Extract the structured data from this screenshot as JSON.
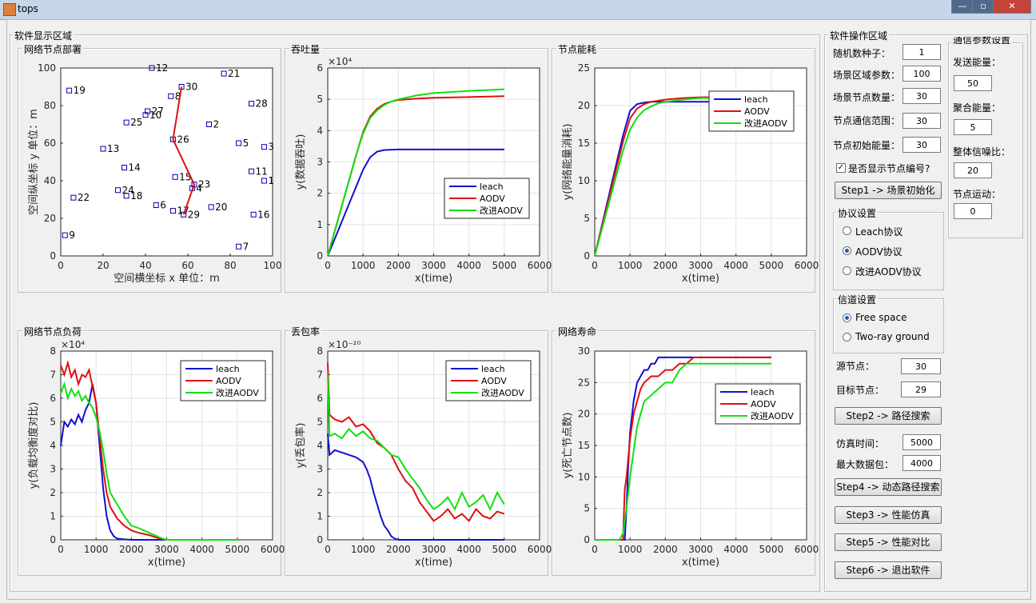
{
  "window": {
    "title": "tops"
  },
  "display_area": {
    "title": "软件显示区域"
  },
  "op_area": {
    "title": "软件操作区域"
  },
  "params": {
    "seed_label": "随机数种子：",
    "seed": "1",
    "area_label": "场景区域参数：",
    "area": "100",
    "nodes_label": "场景节点数量：",
    "nodes": "30",
    "range_label": "节点通信范围：",
    "range": "30",
    "energy_label": "节点初始能量：",
    "energy": "30",
    "show_ids_label": "是否显示节点编号?",
    "show_ids_checked": true
  },
  "comm": {
    "title": "通信参数设置",
    "send_label": "发送能量：",
    "send": "50",
    "agg_label": "聚合能量：",
    "agg": "5",
    "snr_label": "整体信噪比：",
    "snr": "20",
    "move_label": "节点运动：",
    "move": "0"
  },
  "buttons": {
    "step1": "Step1 -> 场景初始化",
    "step2": "Step2 -> 路径搜索",
    "step4": "Step4 -> 动态路径搜索",
    "step3": "Step3 -> 性能仿真",
    "step5": "Step5 -> 性能对比",
    "step6": "Step6 -> 退出软件"
  },
  "protocol": {
    "title": "协议设置",
    "options": [
      "Leach协议",
      "AODV协议",
      "改进AODV协议"
    ],
    "selected": 1
  },
  "channel": {
    "title": "信道设置",
    "options": [
      "Free space",
      "Two-ray ground"
    ],
    "selected": 0
  },
  "route": {
    "src_label": "源节点：",
    "src": "30",
    "dst_label": "目标节点：",
    "dst": "29"
  },
  "sim": {
    "time_label": "仿真时间：",
    "time": "5000",
    "maxpkt_label": "最大数据包：",
    "maxpkt": "4000"
  },
  "colors": {
    "leach": "#1010d0",
    "aodv": "#e01010",
    "improved": "#10e010"
  },
  "chart_data": [
    {
      "panel_title": "网络节点部署",
      "type": "scatter",
      "xlabel": "空间横坐标 x  单位：m",
      "ylabel": "空间纵坐标 y  单位：m",
      "xlim": [
        0,
        100
      ],
      "ylim": [
        0,
        100
      ],
      "xticks": [
        "0",
        "20",
        "40",
        "60",
        "80",
        "100"
      ],
      "yticks": [
        "0",
        "20",
        "40",
        "60",
        "80",
        "100"
      ],
      "points": [
        {
          "id": "1",
          "x": 96,
          "y": 40
        },
        {
          "id": "2",
          "x": 70,
          "y": 70
        },
        {
          "id": "3",
          "x": 96,
          "y": 58
        },
        {
          "id": "4",
          "x": 62,
          "y": 36
        },
        {
          "id": "5",
          "x": 84,
          "y": 60
        },
        {
          "id": "6",
          "x": 45,
          "y": 27
        },
        {
          "id": "7",
          "x": 84,
          "y": 5
        },
        {
          "id": "8",
          "x": 52,
          "y": 85
        },
        {
          "id": "9",
          "x": 2,
          "y": 11
        },
        {
          "id": "10",
          "x": 40,
          "y": 75
        },
        {
          "id": "11",
          "x": 90,
          "y": 45
        },
        {
          "id": "12",
          "x": 43,
          "y": 100
        },
        {
          "id": "13",
          "x": 20,
          "y": 57
        },
        {
          "id": "14",
          "x": 30,
          "y": 47
        },
        {
          "id": "15",
          "x": 54,
          "y": 42
        },
        {
          "id": "16",
          "x": 91,
          "y": 22
        },
        {
          "id": "17",
          "x": 53,
          "y": 24
        },
        {
          "id": "18",
          "x": 31,
          "y": 32
        },
        {
          "id": "19",
          "x": 4,
          "y": 88
        },
        {
          "id": "20",
          "x": 71,
          "y": 26
        },
        {
          "id": "21",
          "x": 77,
          "y": 97
        },
        {
          "id": "22",
          "x": 6,
          "y": 31
        },
        {
          "id": "23",
          "x": 63,
          "y": 38
        },
        {
          "id": "24",
          "x": 27,
          "y": 35
        },
        {
          "id": "25",
          "x": 31,
          "y": 71
        },
        {
          "id": "26",
          "x": 53,
          "y": 62
        },
        {
          "id": "27",
          "x": 41,
          "y": 77
        },
        {
          "id": "28",
          "x": 90,
          "y": 81
        },
        {
          "id": "29",
          "x": 58,
          "y": 22
        },
        {
          "id": "30",
          "x": 57,
          "y": 90
        }
      ],
      "path": [
        30,
        26,
        23,
        29
      ]
    },
    {
      "panel_title": "吞吐量",
      "type": "line",
      "xlabel": "x(time)",
      "ylabel": "y(数据吞吐)",
      "exponent": "×10⁴",
      "xlim": [
        0,
        6000
      ],
      "ylim": [
        0,
        6
      ],
      "xticks": [
        "0",
        "1000",
        "2000",
        "3000",
        "4000",
        "5000",
        "6000"
      ],
      "yticks": [
        "0",
        "1",
        "2",
        "3",
        "4",
        "5",
        "6"
      ],
      "legend": {
        "position": "lower-right",
        "entries": [
          "leach",
          "AODV",
          "改进AODV"
        ]
      },
      "series": [
        {
          "name": "leach",
          "color": "#1010d0",
          "x": [
            0,
            200,
            400,
            600,
            800,
            1000,
            1200,
            1400,
            1600,
            1800,
            2000,
            3000,
            5000
          ],
          "y": [
            0,
            0.55,
            1.1,
            1.65,
            2.2,
            2.75,
            3.15,
            3.33,
            3.38,
            3.39,
            3.4,
            3.4,
            3.4
          ]
        },
        {
          "name": "AODV",
          "color": "#e01010",
          "x": [
            0,
            200,
            400,
            600,
            800,
            1000,
            1200,
            1400,
            1600,
            1800,
            2000,
            2500,
            3000,
            4000,
            5000
          ],
          "y": [
            0,
            0.8,
            1.6,
            2.4,
            3.2,
            3.95,
            4.45,
            4.7,
            4.85,
            4.93,
            4.98,
            5.02,
            5.05,
            5.07,
            5.1
          ]
        },
        {
          "name": "改进AODV",
          "color": "#10e010",
          "x": [
            0,
            200,
            400,
            600,
            800,
            1000,
            1200,
            1400,
            1600,
            1800,
            2000,
            2500,
            3000,
            4000,
            5000
          ],
          "y": [
            0,
            0.8,
            1.6,
            2.4,
            3.2,
            3.9,
            4.4,
            4.65,
            4.82,
            4.93,
            5.0,
            5.12,
            5.2,
            5.27,
            5.32
          ]
        }
      ]
    },
    {
      "panel_title": "节点能耗",
      "type": "line",
      "xlabel": "x(time)",
      "ylabel": "y(网络能量消耗)",
      "xlim": [
        0,
        6000
      ],
      "ylim": [
        0,
        25
      ],
      "xticks": [
        "0",
        "1000",
        "2000",
        "3000",
        "4000",
        "5000",
        "6000"
      ],
      "yticks": [
        "0",
        "5",
        "10",
        "15",
        "20",
        "25"
      ],
      "legend": {
        "position": "top-right",
        "entries": [
          "leach",
          "AODV",
          "改进AODV"
        ]
      },
      "series": [
        {
          "name": "leach",
          "color": "#1010d0",
          "x": [
            0,
            200,
            400,
            600,
            800,
            1000,
            1200,
            1400,
            1600,
            2000,
            3000,
            5000
          ],
          "y": [
            0,
            4,
            8,
            12,
            16,
            19.3,
            20.2,
            20.4,
            20.5,
            20.5,
            20.5,
            20.5
          ]
        },
        {
          "name": "AODV",
          "color": "#e01010",
          "x": [
            0,
            200,
            400,
            600,
            800,
            1000,
            1200,
            1400,
            1600,
            2000,
            2500,
            3000,
            5000
          ],
          "y": [
            0,
            3.8,
            7.6,
            11.4,
            15.2,
            18.3,
            19.6,
            20.2,
            20.5,
            20.8,
            21.0,
            21.1,
            21.2
          ]
        },
        {
          "name": "改进AODV",
          "color": "#10e010",
          "x": [
            0,
            200,
            400,
            600,
            800,
            1000,
            1200,
            1400,
            1600,
            1800,
            2000,
            2500,
            3000,
            5000
          ],
          "y": [
            0,
            3.5,
            7,
            10.5,
            14,
            16.8,
            18.4,
            19.4,
            19.9,
            20.3,
            20.5,
            20.8,
            21.0,
            21.1
          ]
        }
      ]
    },
    {
      "panel_title": "网络节点负荷",
      "type": "line",
      "xlabel": "x(time)",
      "ylabel": "y(负载均衡度对比)",
      "exponent": "×10⁴",
      "xlim": [
        0,
        6000
      ],
      "ylim": [
        0,
        8
      ],
      "xticks": [
        "0",
        "1000",
        "2000",
        "3000",
        "4000",
        "5000",
        "6000"
      ],
      "yticks": [
        "0",
        "1",
        "2",
        "3",
        "4",
        "5",
        "6",
        "7",
        "8"
      ],
      "legend": {
        "position": "top-right",
        "entries": [
          "leach",
          "AODV",
          "改进AODV"
        ]
      },
      "series": [
        {
          "name": "leach",
          "color": "#1010d0",
          "x": [
            0,
            100,
            200,
            300,
            400,
            500,
            600,
            700,
            800,
            900,
            1000,
            1100,
            1200,
            1300,
            1400,
            1500,
            1600,
            1800,
            2000,
            3000,
            5000
          ],
          "y": [
            4.0,
            5.0,
            4.8,
            5.1,
            4.9,
            5.3,
            5.0,
            5.5,
            5.8,
            6.6,
            5.8,
            4.0,
            2.2,
            1.0,
            0.4,
            0.15,
            0.05,
            0.02,
            0,
            0,
            0
          ]
        },
        {
          "name": "AODV",
          "color": "#e01010",
          "x": [
            0,
            100,
            200,
            300,
            400,
            500,
            600,
            700,
            800,
            900,
            1000,
            1100,
            1200,
            1300,
            1400,
            1600,
            1800,
            2000,
            2200,
            2500,
            2800,
            3000,
            5000
          ],
          "y": [
            7.4,
            7.0,
            7.5,
            6.9,
            7.2,
            6.6,
            7.0,
            6.9,
            7.2,
            6.5,
            5.8,
            4.4,
            3.0,
            2.0,
            1.4,
            0.9,
            0.6,
            0.4,
            0.3,
            0.2,
            0.05,
            0,
            0
          ]
        },
        {
          "name": "改进AODV",
          "color": "#10e010",
          "x": [
            0,
            100,
            200,
            300,
            400,
            500,
            600,
            700,
            800,
            900,
            1000,
            1100,
            1200,
            1300,
            1400,
            1600,
            1800,
            2000,
            2200,
            2500,
            2800,
            3000,
            5000
          ],
          "y": [
            6.2,
            6.6,
            6.0,
            6.4,
            6.1,
            6.3,
            5.9,
            6.1,
            5.8,
            5.6,
            5.2,
            4.6,
            3.8,
            2.8,
            2.0,
            1.5,
            1.0,
            0.6,
            0.5,
            0.3,
            0.1,
            0,
            0
          ]
        }
      ]
    },
    {
      "panel_title": "丢包率",
      "type": "line",
      "xlabel": "x(time)",
      "ylabel": "y(丢包率)",
      "exponent": "×10⁻²⁰",
      "xlim": [
        0,
        6000
      ],
      "ylim": [
        0,
        8
      ],
      "xticks": [
        "0",
        "1000",
        "2000",
        "3000",
        "4000",
        "5000",
        "6000"
      ],
      "yticks": [
        "0",
        "1",
        "2",
        "3",
        "4",
        "5",
        "6",
        "7",
        "8"
      ],
      "legend": {
        "position": "top-right",
        "entries": [
          "leach",
          "AODV",
          "改进AODV"
        ]
      },
      "series": [
        {
          "name": "leach",
          "color": "#1010d0",
          "x": [
            0,
            50,
            200,
            400,
            600,
            800,
            1000,
            1100,
            1200,
            1300,
            1400,
            1500,
            1600,
            1700,
            1800,
            1900,
            2000,
            3000,
            5000
          ],
          "y": [
            4.5,
            3.6,
            3.8,
            3.7,
            3.6,
            3.5,
            3.3,
            3.0,
            2.6,
            2.0,
            1.5,
            1.0,
            0.6,
            0.4,
            0.15,
            0.05,
            0,
            0,
            0
          ]
        },
        {
          "name": "AODV",
          "color": "#e01010",
          "x": [
            0,
            50,
            200,
            400,
            600,
            800,
            1000,
            1200,
            1400,
            1600,
            1800,
            2000,
            2200,
            2400,
            2600,
            2800,
            3000,
            3200,
            3400,
            3600,
            3800,
            4000,
            4200,
            4400,
            4600,
            4800,
            5000
          ],
          "y": [
            7.5,
            5.3,
            5.1,
            5.0,
            5.2,
            4.8,
            4.9,
            4.6,
            4.1,
            3.9,
            3.6,
            3.0,
            2.5,
            2.2,
            1.6,
            1.2,
            0.8,
            1.0,
            1.3,
            0.9,
            1.1,
            0.8,
            1.3,
            1.0,
            0.9,
            1.2,
            1.1
          ]
        },
        {
          "name": "改进AODV",
          "color": "#10e010",
          "x": [
            0,
            50,
            200,
            400,
            600,
            800,
            1000,
            1200,
            1400,
            1600,
            1800,
            2000,
            2200,
            2400,
            2600,
            2800,
            3000,
            3200,
            3400,
            3600,
            3800,
            4000,
            4200,
            4400,
            4600,
            4800,
            5000
          ],
          "y": [
            7.0,
            4.4,
            4.5,
            4.3,
            4.7,
            4.4,
            4.6,
            4.3,
            4.2,
            3.9,
            3.6,
            3.5,
            3.0,
            2.6,
            2.2,
            1.7,
            1.3,
            1.5,
            1.8,
            1.3,
            2.0,
            1.4,
            1.6,
            1.9,
            1.3,
            2.0,
            1.5
          ]
        }
      ]
    },
    {
      "panel_title": "网络寿命",
      "type": "line",
      "xlabel": "x(time)",
      "ylabel": "y(死亡节点数)",
      "xlim": [
        0,
        6000
      ],
      "ylim": [
        0,
        30
      ],
      "xticks": [
        "0",
        "1000",
        "2000",
        "3000",
        "4000",
        "5000",
        "6000"
      ],
      "yticks": [
        "0",
        "5",
        "10",
        "15",
        "20",
        "25",
        "30"
      ],
      "legend": {
        "position": "right",
        "entries": [
          "leach",
          "AODV",
          "改进AODV"
        ]
      },
      "series": [
        {
          "name": "leach",
          "color": "#1010d0",
          "x": [
            0,
            850,
            900,
            950,
            1000,
            1100,
            1200,
            1300,
            1400,
            1500,
            1600,
            1700,
            1800,
            1900,
            2000,
            3000,
            5000
          ],
          "y": [
            0,
            0,
            5,
            12,
            17,
            22,
            25,
            26,
            27,
            27,
            28,
            28,
            29,
            29,
            29,
            29,
            29
          ]
        },
        {
          "name": "AODV",
          "color": "#e01010",
          "x": [
            0,
            800,
            850,
            900,
            1000,
            1100,
            1200,
            1300,
            1400,
            1600,
            1800,
            2000,
            2200,
            2400,
            2600,
            2800,
            3000,
            5000
          ],
          "y": [
            0,
            0,
            8,
            10,
            16,
            20,
            22,
            24,
            25,
            26,
            26,
            27,
            27,
            28,
            28,
            29,
            29,
            29
          ]
        },
        {
          "name": "改进AODV",
          "color": "#10e010",
          "x": [
            0,
            700,
            800,
            900,
            1000,
            1100,
            1200,
            1300,
            1400,
            1600,
            1800,
            2000,
            2200,
            2400,
            2600,
            3000,
            5000
          ],
          "y": [
            0,
            0,
            1,
            5,
            10,
            14,
            18,
            20,
            22,
            23,
            24,
            25,
            25,
            27,
            28,
            28,
            28
          ]
        }
      ]
    }
  ]
}
